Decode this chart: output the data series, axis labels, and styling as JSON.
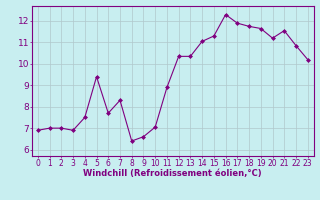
{
  "x": [
    0,
    1,
    2,
    3,
    4,
    5,
    6,
    7,
    8,
    9,
    10,
    11,
    12,
    13,
    14,
    15,
    16,
    17,
    18,
    19,
    20,
    21,
    22,
    23
  ],
  "y": [
    6.9,
    7.0,
    7.0,
    6.9,
    7.5,
    9.4,
    7.7,
    8.3,
    6.4,
    6.6,
    7.05,
    8.9,
    10.35,
    10.35,
    11.05,
    11.3,
    12.3,
    11.9,
    11.75,
    11.65,
    11.2,
    11.55,
    10.85,
    10.2
  ],
  "line_color": "#800080",
  "marker": "D",
  "marker_size": 2,
  "bg_color": "#c8eef0",
  "grid_color": "#b0c8cc",
  "xlabel": "Windchill (Refroidissement éolien,°C)",
  "xlim": [
    -0.5,
    23.5
  ],
  "ylim": [
    5.7,
    12.7
  ],
  "yticks": [
    6,
    7,
    8,
    9,
    10,
    11,
    12
  ],
  "xticks": [
    0,
    1,
    2,
    3,
    4,
    5,
    6,
    7,
    8,
    9,
    10,
    11,
    12,
    13,
    14,
    15,
    16,
    17,
    18,
    19,
    20,
    21,
    22,
    23
  ],
  "label_color": "#800080",
  "tick_color": "#800080",
  "spine_color": "#800080",
  "font_size": 5.5,
  "xlabel_font_size": 6.0
}
